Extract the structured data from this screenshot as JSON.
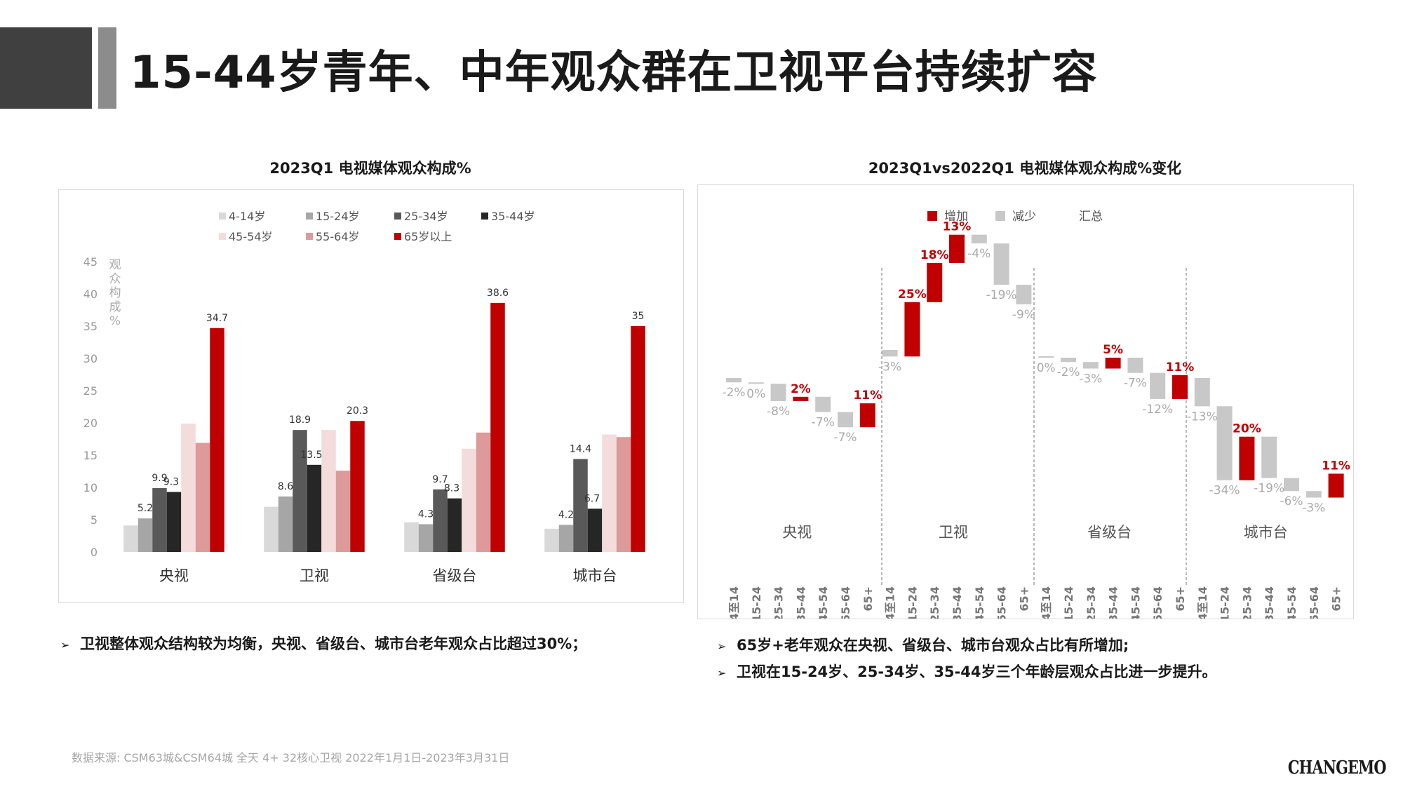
{
  "header": {
    "title": "15-44岁青年、中年观众群在卫视平台持续扩容"
  },
  "colors": {
    "4-14": "#d9d9d9",
    "15-24": "#a6a6a6",
    "25-34": "#595959",
    "35-44": "#262626",
    "45-54": "#f4dcdc",
    "55-64": "#dc9a9a",
    "65+": "#c00000",
    "increase": "#c00000",
    "decrease": "#c8c8c8"
  },
  "left": {
    "title": "2023Q1 电视媒体观众构成%",
    "bullet": "卫视整体观众结构较为均衡，央视、省级台、城市台老年观众占比超过30%；"
  },
  "right": {
    "title": "2023Q1vs2022Q1 电视媒体观众构成%变化",
    "bullets": [
      "65岁+老年观众在央视、省级台、城市台观众占比有所增加;",
      "卫视在15-24岁、25-34岁、35-44岁三个年龄层观众占比进一步提升。"
    ]
  },
  "footer": {
    "source": "数据来源:   CSM63城&CSM64城   全天  4+   32核心卫视   2022年1月1日-2023年3月31日",
    "logo": "CHANGEMO"
  },
  "chart_data": [
    {
      "type": "bar",
      "title": "2023Q1 电视媒体观众构成%",
      "ylabel": "观众构成%",
      "ylim": [
        0,
        45
      ],
      "yticks": [
        0,
        5,
        10,
        15,
        20,
        25,
        30,
        35,
        40,
        45
      ],
      "legend_position": "top",
      "categories": [
        "央视",
        "卫视",
        "省级台",
        "城市台"
      ],
      "series": [
        {
          "name": "4-14岁",
          "values": [
            4.1,
            7.0,
            4.6,
            3.6
          ]
        },
        {
          "name": "15-24岁",
          "values": [
            5.2,
            8.6,
            4.3,
            4.2
          ]
        },
        {
          "name": "25-34岁",
          "values": [
            9.9,
            18.9,
            9.7,
            14.4
          ]
        },
        {
          "name": "35-44岁",
          "values": [
            9.3,
            13.5,
            8.3,
            6.7
          ]
        },
        {
          "name": "45-54岁",
          "values": [
            19.9,
            18.9,
            16.0,
            18.2
          ]
        },
        {
          "name": "55-64岁",
          "values": [
            16.9,
            12.6,
            18.5,
            17.8
          ]
        },
        {
          "name": "65岁以上",
          "values": [
            34.7,
            20.3,
            38.6,
            35.0
          ]
        }
      ],
      "data_labels": [
        [
          "",
          "5.2",
          "9.9",
          "9.3",
          "",
          "",
          "34.7"
        ],
        [
          "",
          "8.6",
          "18.9",
          "13.5",
          "",
          "",
          "20.3"
        ],
        [
          "",
          "4.3",
          "9.7",
          "8.3",
          "",
          "",
          "38.6"
        ],
        [
          "",
          "4.2",
          "14.4",
          "6.7",
          "",
          "",
          "35"
        ]
      ]
    },
    {
      "type": "waterfall",
      "title": "2023Q1vs2022Q1 电视媒体观众构成%变化",
      "legend": [
        "增加",
        "减少",
        "汇总"
      ],
      "legend_position": "top",
      "groups": [
        "央视",
        "卫视",
        "省级台",
        "城市台"
      ],
      "age_labels": [
        "4至14",
        "15-24",
        "25-34",
        "35-44",
        "45-54",
        "55-64",
        "65+"
      ],
      "series": [
        {
          "name": "央视",
          "values": [
            -2,
            0,
            -8,
            2,
            -7,
            -7,
            11
          ],
          "labels": [
            "-2%",
            "0%",
            "-8%",
            "2%",
            "-7%",
            "-7%",
            "11%"
          ]
        },
        {
          "name": "卫视",
          "values": [
            -3,
            25,
            18,
            13,
            -4,
            -19,
            -9
          ],
          "labels": [
            "-3%",
            "25%",
            "18%",
            "13%",
            "-4%",
            "-19%",
            "-9%"
          ]
        },
        {
          "name": "省级台",
          "values": [
            0,
            -2,
            -3,
            5,
            -7,
            -12,
            11
          ],
          "labels": [
            "0%",
            "-2%",
            "-3%",
            "5%",
            "-7%",
            "-12%",
            "11%"
          ]
        },
        {
          "name": "城市台",
          "values": [
            -13,
            -34,
            20,
            -19,
            -6,
            -3,
            11
          ],
          "labels": [
            "-13%",
            "-34%",
            "20%",
            "-19%",
            "-6%",
            "-3%",
            "11%"
          ]
        }
      ]
    }
  ]
}
